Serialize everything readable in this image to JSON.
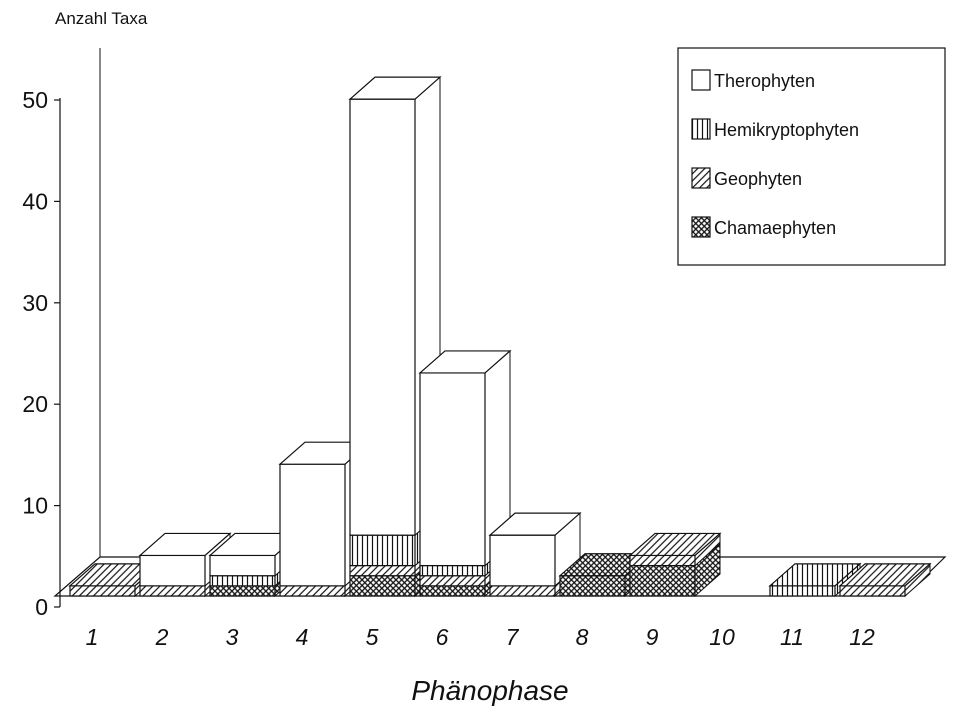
{
  "chart_data": {
    "type": "bar3d-stacked",
    "y_label": "Anzahl Taxa",
    "x_label": "Phänophase",
    "categories": [
      "1",
      "2",
      "3",
      "4",
      "5",
      "6",
      "7",
      "8",
      "9",
      "10",
      "11",
      "12"
    ],
    "series": [
      {
        "name": "Therophyten",
        "color": "#ffffff",
        "pattern": "none",
        "values": [
          0,
          3,
          2,
          12,
          43,
          19,
          5,
          0,
          0,
          0,
          0,
          0
        ]
      },
      {
        "name": "Hemikryptophyten",
        "color": "#ffffff",
        "pattern": "vertical",
        "values": [
          0,
          0,
          1,
          0,
          3,
          1,
          0,
          0,
          0,
          0,
          1,
          0
        ]
      },
      {
        "name": "Geophyten",
        "color": "#ffffff",
        "pattern": "diagonal",
        "values": [
          1,
          1,
          0,
          1,
          1,
          1,
          1,
          0,
          1,
          0,
          0,
          1
        ]
      },
      {
        "name": "Chamaephyten",
        "color": "#ffffff",
        "pattern": "cross",
        "values": [
          0,
          0,
          1,
          0,
          2,
          1,
          0,
          2,
          3,
          0,
          0,
          0
        ]
      }
    ],
    "ylim": [
      0,
      50
    ],
    "yticks": [
      0,
      10,
      20,
      30,
      40,
      50
    ],
    "legend": "upper-right"
  }
}
